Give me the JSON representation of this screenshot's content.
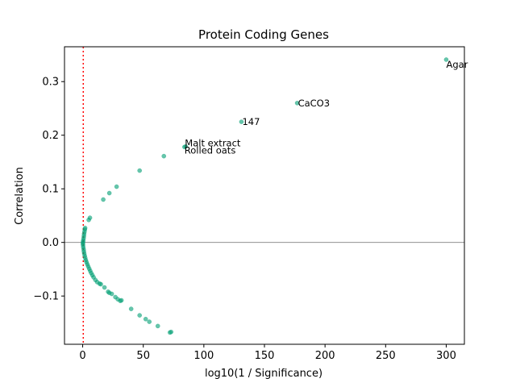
{
  "chart_data": {
    "type": "scatter",
    "title": "Protein Coding Genes",
    "xlabel": "log10(1 / Significance)",
    "ylabel": "Correlation",
    "xlim": [
      -15,
      315
    ],
    "ylim": [
      -0.19,
      0.365
    ],
    "xticks": [
      0,
      50,
      100,
      150,
      200,
      250,
      300
    ],
    "xtick_labels": [
      "0",
      "50",
      "100",
      "150",
      "200",
      "250",
      "300"
    ],
    "yticks": [
      -0.1,
      0.0,
      0.1,
      0.2,
      0.3
    ],
    "ytick_labels": [
      "−0.1",
      "0.0",
      "0.1",
      "0.2",
      "0.3"
    ],
    "grid": false,
    "point_color": "#009e73",
    "hline": {
      "y": 0,
      "color": "#808080"
    },
    "vline": {
      "x": 0.5,
      "color": "#ff0000",
      "style": "dotted"
    },
    "points": [
      [
        300,
        0.341
      ],
      [
        177,
        0.26
      ],
      [
        131,
        0.225
      ],
      [
        85,
        0.179
      ],
      [
        84,
        0.178
      ],
      [
        67,
        0.161
      ],
      [
        47,
        0.134
      ],
      [
        28,
        0.104
      ],
      [
        22,
        0.092
      ],
      [
        17,
        0.08
      ],
      [
        6,
        0.046
      ],
      [
        5,
        0.042
      ],
      [
        2,
        0.027
      ],
      [
        1.8,
        0.024
      ],
      [
        1.5,
        0.02
      ],
      [
        1.2,
        0.016
      ],
      [
        1,
        0.012
      ],
      [
        0.8,
        0.008
      ],
      [
        0.5,
        0.004
      ],
      [
        0.3,
        0.001
      ],
      [
        0.2,
        -0.002
      ],
      [
        0.3,
        -0.005
      ],
      [
        0.5,
        -0.009
      ],
      [
        0.8,
        -0.013
      ],
      [
        1,
        -0.017
      ],
      [
        1.3,
        -0.021
      ],
      [
        1.7,
        -0.025
      ],
      [
        2.1,
        -0.029
      ],
      [
        2.6,
        -0.033
      ],
      [
        3.2,
        -0.037
      ],
      [
        3.9,
        -0.041
      ],
      [
        4.6,
        -0.045
      ],
      [
        5.4,
        -0.049
      ],
      [
        6.2,
        -0.053
      ],
      [
        7,
        -0.057
      ],
      [
        8,
        -0.061
      ],
      [
        9,
        -0.065
      ],
      [
        10.5,
        -0.07
      ],
      [
        12,
        -0.074
      ],
      [
        14,
        -0.077
      ],
      [
        15,
        -0.078
      ],
      [
        18,
        -0.084
      ],
      [
        21,
        -0.092
      ],
      [
        22,
        -0.094
      ],
      [
        24,
        -0.096
      ],
      [
        27,
        -0.102
      ],
      [
        29,
        -0.106
      ],
      [
        31,
        -0.109
      ],
      [
        32,
        -0.108
      ],
      [
        40,
        -0.124
      ],
      [
        47,
        -0.136
      ],
      [
        52,
        -0.143
      ],
      [
        55,
        -0.148
      ],
      [
        62,
        -0.156
      ],
      [
        72,
        -0.168
      ],
      [
        73,
        -0.167
      ]
    ],
    "annotations": [
      {
        "text": "Agar",
        "x": 300,
        "y": 0.341,
        "align": "below-right"
      },
      {
        "text": "CaCO3",
        "x": 177,
        "y": 0.26,
        "align": "right"
      },
      {
        "text": "147",
        "x": 131,
        "y": 0.225,
        "align": "right"
      },
      {
        "text": "Malt extract",
        "x": 85,
        "y": 0.179,
        "align": "above-right"
      },
      {
        "text": "Rolled oats",
        "x": 84,
        "y": 0.178,
        "align": "below-right"
      }
    ]
  }
}
